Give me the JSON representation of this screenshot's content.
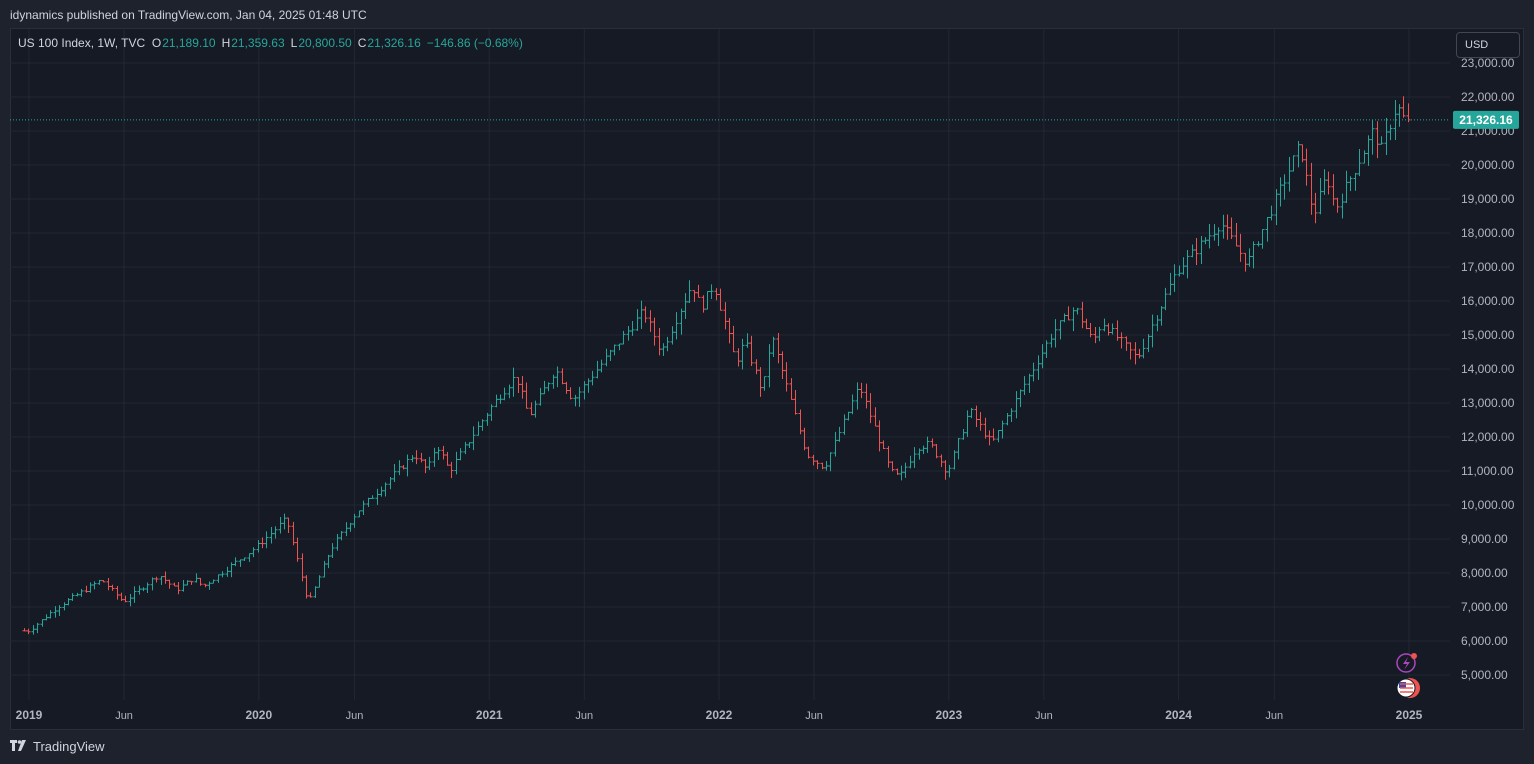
{
  "header": {
    "published": "idynamics published on TradingView.com, Jan 04, 2025 01:48 UTC"
  },
  "legend": {
    "symbol": "US 100 Index, 1W, TVC",
    "o_label": "O",
    "o_value": "21,189.10",
    "h_label": "H",
    "h_value": "21,359.63",
    "l_label": "L",
    "l_value": "20,800.50",
    "c_label": "C",
    "c_value": "21,326.16",
    "change": "−146.86 (−0.68%)"
  },
  "currency_button": "USD",
  "price_tag": "21,326.16",
  "footer": {
    "brand": "TradingView"
  },
  "icons": [
    "flash-icon",
    "us-flag-icon",
    "tradingview-logo-icon"
  ],
  "colors": {
    "up": "#26a69a",
    "down": "#ef5350",
    "background": "#161a25",
    "grid": "#232733",
    "price_line": "#26a69a"
  },
  "chart_data": {
    "type": "ohlc",
    "timeframe": "1W",
    "ylim": [
      4500,
      23200
    ],
    "y_ticks": [
      5000,
      6000,
      7000,
      8000,
      9000,
      10000,
      11000,
      12000,
      13000,
      14000,
      15000,
      16000,
      17000,
      18000,
      19000,
      20000,
      21000,
      22000,
      23000
    ],
    "y_tick_labels": [
      "5,000.00",
      "6,000.00",
      "7,000.00",
      "8,000.00",
      "9,000.00",
      "10,000.00",
      "11,000.00",
      "12,000.00",
      "13,000.00",
      "14,000.00",
      "15,000.00",
      "16,000.00",
      "17,000.00",
      "18,000.00",
      "19,000.00",
      "20,000.00",
      "21,000.00",
      "22,000.00",
      "23,000.00"
    ],
    "x_tick_labels": [
      "2019",
      "Jun",
      "2020",
      "Jun",
      "2021",
      "Jun",
      "2022",
      "Jun",
      "2023",
      "Jun",
      "2024",
      "Jun",
      "2025"
    ],
    "x_tick_dates": [
      "2019-01-01",
      "2019-06-01",
      "2020-01-01",
      "2020-06-01",
      "2021-01-01",
      "2021-06-01",
      "2022-01-01",
      "2022-06-01",
      "2023-01-01",
      "2023-06-01",
      "2024-01-01",
      "2024-06-01",
      "2025-01-01"
    ],
    "last_close": 21326.16,
    "price_path": [
      [
        "2018-12-24",
        6300
      ],
      [
        "2019-01-01",
        6300
      ],
      [
        "2019-02-15",
        7000
      ],
      [
        "2019-04-26",
        7800
      ],
      [
        "2019-05-31",
        7150
      ],
      [
        "2019-07-26",
        7950
      ],
      [
        "2019-08-23",
        7500
      ],
      [
        "2019-09-20",
        7850
      ],
      [
        "2019-10-04",
        7600
      ],
      [
        "2019-12-27",
        8750
      ],
      [
        "2020-02-14",
        9600
      ],
      [
        "2020-03-20",
        7100
      ],
      [
        "2020-04-24",
        8700
      ],
      [
        "2020-06-05",
        9800
      ],
      [
        "2020-09-04",
        11500
      ],
      [
        "2020-09-25",
        11000
      ],
      [
        "2020-10-09",
        11800
      ],
      [
        "2020-10-30",
        11000
      ],
      [
        "2021-01-08",
        13000
      ],
      [
        "2021-02-12",
        13800
      ],
      [
        "2021-03-05",
        12600
      ],
      [
        "2021-04-16",
        14000
      ],
      [
        "2021-05-14",
        13100
      ],
      [
        "2021-09-03",
        15700
      ],
      [
        "2021-10-01",
        14500
      ],
      [
        "2021-11-19",
        16500
      ],
      [
        "2021-12-03",
        15800
      ],
      [
        "2021-12-24",
        16500
      ],
      [
        "2022-01-28",
        14200
      ],
      [
        "2022-02-11",
        14800
      ],
      [
        "2022-03-11",
        13300
      ],
      [
        "2022-03-25",
        15000
      ],
      [
        "2022-05-20",
        11500
      ],
      [
        "2022-06-17",
        11100
      ],
      [
        "2022-08-12",
        13500
      ],
      [
        "2022-09-30",
        11000
      ],
      [
        "2022-10-14",
        10800
      ],
      [
        "2022-11-11",
        11700
      ],
      [
        "2022-12-02",
        11800
      ],
      [
        "2022-12-30",
        10950
      ],
      [
        "2023-02-03",
        12800
      ],
      [
        "2023-03-10",
        11800
      ],
      [
        "2023-06-16",
        15100
      ],
      [
        "2023-07-21",
        15800
      ],
      [
        "2023-08-18",
        14800
      ],
      [
        "2023-09-01",
        15400
      ],
      [
        "2023-10-27",
        14300
      ],
      [
        "2023-12-29",
        16900
      ],
      [
        "2024-03-08",
        18300
      ],
      [
        "2024-04-19",
        17100
      ],
      [
        "2024-07-12",
        20600
      ],
      [
        "2024-08-02",
        18500
      ],
      [
        "2024-08-23",
        19700
      ],
      [
        "2024-09-06",
        18700
      ],
      [
        "2024-11-08",
        21100
      ],
      [
        "2024-11-15",
        20300
      ],
      [
        "2024-12-13",
        21800
      ],
      [
        "2024-12-20",
        21400
      ],
      [
        "2025-01-03",
        21326
      ]
    ]
  }
}
